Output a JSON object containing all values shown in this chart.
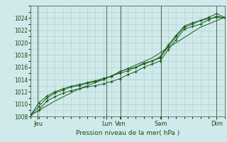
{
  "title": "Pression niveau de la mer( hPa )",
  "bg_color": "#d0eaeb",
  "grid_color": "#b0cccc",
  "line_color": "#1a5c1a",
  "ylim": [
    1008,
    1026
  ],
  "yticks": [
    1008,
    1010,
    1012,
    1014,
    1016,
    1018,
    1020,
    1022,
    1024
  ],
  "day_labels": [
    "Jeu",
    "Lun",
    "Ven",
    "Sam",
    "Dim"
  ],
  "line1_x": [
    0,
    1,
    2,
    3,
    4,
    5,
    6,
    7,
    8,
    9,
    10,
    11,
    12,
    13,
    14,
    15,
    16,
    17,
    18,
    19,
    20,
    21,
    22,
    23,
    24
  ],
  "line1_y": [
    1008.2,
    1009.0,
    1010.5,
    1011.2,
    1011.8,
    1012.2,
    1012.5,
    1012.8,
    1013.0,
    1013.3,
    1013.7,
    1014.1,
    1014.8,
    1015.3,
    1016.0,
    1016.5,
    1017.0,
    1018.8,
    1020.5,
    1022.2,
    1022.6,
    1023.0,
    1023.7,
    1024.3,
    1024.0
  ],
  "line2_x": [
    0,
    1,
    2,
    3,
    4,
    5,
    6,
    7,
    8,
    9,
    10,
    11,
    12,
    13,
    14,
    15,
    16,
    17,
    18,
    19,
    20,
    21,
    22,
    23,
    24
  ],
  "line2_y": [
    1008.2,
    1010.2,
    1011.3,
    1012.0,
    1012.5,
    1012.9,
    1013.2,
    1013.5,
    1013.8,
    1014.2,
    1014.5,
    1015.3,
    1015.7,
    1016.0,
    1016.7,
    1017.0,
    1017.5,
    1019.3,
    1021.0,
    1022.5,
    1023.0,
    1023.6,
    1024.1,
    1024.7,
    1024.1
  ],
  "line3_x": [
    0,
    3,
    6,
    9,
    12,
    15,
    18,
    21,
    24
  ],
  "line3_y": [
    1008.2,
    1010.5,
    1012.5,
    1014.0,
    1015.8,
    1017.5,
    1020.0,
    1022.5,
    1024.1
  ],
  "line4_x": [
    0,
    1,
    2,
    3,
    4,
    5,
    6,
    7,
    8,
    9,
    10,
    11,
    12,
    13,
    14,
    15,
    16,
    17,
    18,
    19,
    20,
    21,
    22,
    23,
    24
  ],
  "line4_y": [
    1008.2,
    1009.6,
    1011.0,
    1011.8,
    1012.3,
    1012.8,
    1013.0,
    1013.4,
    1013.7,
    1014.0,
    1014.6,
    1015.0,
    1015.4,
    1016.0,
    1016.5,
    1017.0,
    1017.7,
    1019.6,
    1021.2,
    1022.7,
    1023.2,
    1023.6,
    1023.9,
    1024.1,
    1024.0
  ],
  "xmax": 24,
  "xtick_day_x": [
    0.9,
    9.4,
    11.1,
    16.1,
    23.0
  ]
}
